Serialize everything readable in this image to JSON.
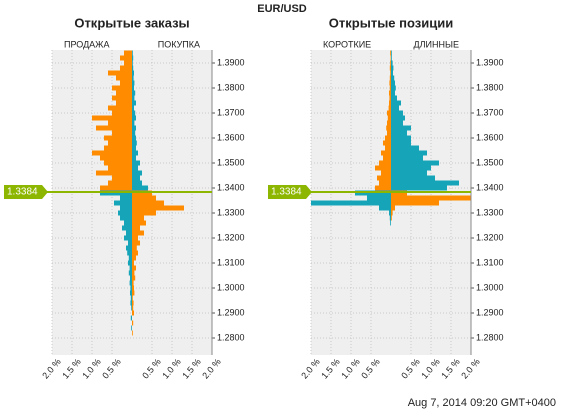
{
  "title": "EUR/USD",
  "footer": "Aug 7, 2014 09:20 GMT+0400",
  "chart_data": [
    {
      "type": "butterfly",
      "title": "Открытые заказы",
      "current_price": 1.3384,
      "y": [
        1.28,
        1.282,
        1.284,
        1.286,
        1.288,
        1.29,
        1.292,
        1.294,
        1.296,
        1.298,
        1.3,
        1.302,
        1.304,
        1.306,
        1.308,
        1.31,
        1.312,
        1.314,
        1.316,
        1.318,
        1.32,
        1.322,
        1.324,
        1.326,
        1.328,
        1.33,
        1.332,
        1.334,
        1.336,
        1.338,
        1.34,
        1.342,
        1.344,
        1.346,
        1.348,
        1.35,
        1.352,
        1.354,
        1.356,
        1.358,
        1.36,
        1.362,
        1.364,
        1.366,
        1.368,
        1.37,
        1.372,
        1.374,
        1.376,
        1.378,
        1.38,
        1.382,
        1.384,
        1.386,
        1.388,
        1.39,
        1.392,
        1.394
      ],
      "series": [
        {
          "name": "ПРОДАЖА",
          "side": "left",
          "color_above": "#ff8c00",
          "color_below": "#16a4b8",
          "values": [
            0,
            0,
            0.02,
            0,
            0.03,
            0,
            0.02,
            0.04,
            0.03,
            0.05,
            0.04,
            0.06,
            0.05,
            0.08,
            0.06,
            0.1,
            0.08,
            0.12,
            0.15,
            0.1,
            0.2,
            0.15,
            0.25,
            0.2,
            0.3,
            0.35,
            0.3,
            0.45,
            0.3,
            0.8,
            0.8,
            0.6,
            0.5,
            0.9,
            0.6,
            0.7,
            0.8,
            1.0,
            0.7,
            0.6,
            0.7,
            0.5,
            0.9,
            0.6,
            1.0,
            0.5,
            0.6,
            0.4,
            0.5,
            0.4,
            0.5,
            0.3,
            0.4,
            0.6,
            0.3,
            0.2,
            0.3,
            0.2
          ]
        },
        {
          "name": "ПОКУПКА",
          "side": "right",
          "color_above": "#16a4b8",
          "color_below": "#ff8c00",
          "values": [
            0,
            0.02,
            0,
            0.03,
            0,
            0.05,
            0.03,
            0.04,
            0.02,
            0.06,
            0.05,
            0.04,
            0.08,
            0.06,
            0.1,
            0.05,
            0.1,
            0.15,
            0.12,
            0.2,
            0.15,
            0.3,
            0.2,
            0.35,
            0.3,
            0.6,
            1.3,
            0.8,
            0.6,
            0.5,
            0.4,
            0.25,
            0.2,
            0.25,
            0.15,
            0.2,
            0.1,
            0.15,
            0.1,
            0.12,
            0.1,
            0.08,
            0.1,
            0.06,
            0.1,
            0.08,
            0.05,
            0.1,
            0.06,
            0.08,
            0.05,
            0.06,
            0.04,
            0.05,
            0.03,
            0.02,
            0.03,
            0.02
          ]
        }
      ],
      "xlim": [
        -2,
        2
      ],
      "xticks": [
        {
          "value": -2,
          "label": "2.0 %"
        },
        {
          "value": -1.5,
          "label": "1.5 %"
        },
        {
          "value": -1,
          "label": "1.0 %"
        },
        {
          "value": -0.5,
          "label": "0.5 %"
        },
        {
          "value": 0.5,
          "label": "0.5 %"
        },
        {
          "value": 1,
          "label": "1.0 %"
        },
        {
          "value": 1.5,
          "label": "1.5 %"
        },
        {
          "value": 2,
          "label": "2.0 %"
        }
      ],
      "ylim": [
        1.2732,
        1.3952
      ],
      "yticks": [
        {
          "value": 1.28,
          "label": "1.2800"
        },
        {
          "value": 1.29,
          "label": "1.2900"
        },
        {
          "value": 1.3,
          "label": "1.3000"
        },
        {
          "value": 1.31,
          "label": "1.3100"
        },
        {
          "value": 1.32,
          "label": "1.3200"
        },
        {
          "value": 1.33,
          "label": "1.3300"
        },
        {
          "value": 1.34,
          "label": "1.3400"
        },
        {
          "value": 1.35,
          "label": "1.3500"
        },
        {
          "value": 1.36,
          "label": "1.3600"
        },
        {
          "value": 1.37,
          "label": "1.3700"
        },
        {
          "value": 1.38,
          "label": "1.3800"
        },
        {
          "value": 1.39,
          "label": "1.3900"
        }
      ],
      "grid": true
    },
    {
      "type": "butterfly",
      "title": "Открытые позиции",
      "current_price": 1.3384,
      "y": [
        1.28,
        1.282,
        1.284,
        1.286,
        1.288,
        1.29,
        1.292,
        1.294,
        1.296,
        1.298,
        1.3,
        1.302,
        1.304,
        1.306,
        1.308,
        1.31,
        1.312,
        1.314,
        1.316,
        1.318,
        1.32,
        1.322,
        1.324,
        1.326,
        1.328,
        1.33,
        1.332,
        1.334,
        1.336,
        1.338,
        1.34,
        1.342,
        1.344,
        1.346,
        1.348,
        1.35,
        1.352,
        1.354,
        1.356,
        1.358,
        1.36,
        1.362,
        1.364,
        1.366,
        1.368,
        1.37,
        1.372,
        1.374,
        1.376,
        1.378,
        1.38,
        1.382,
        1.384,
        1.386,
        1.388,
        1.39,
        1.392,
        1.394
      ],
      "series": [
        {
          "name": "КОРОТКИЕ",
          "side": "left",
          "color_above": "#ff8c00",
          "color_below": "#16a4b8",
          "values": [
            0,
            0,
            0,
            0,
            0,
            0,
            0,
            0,
            0,
            0,
            0,
            0,
            0,
            0,
            0,
            0,
            0,
            0,
            0,
            0,
            0,
            0,
            0,
            0.02,
            0.03,
            0.05,
            0.3,
            2.0,
            0.6,
            0.9,
            0.4,
            0.3,
            0.35,
            0.25,
            0.4,
            0.3,
            0.2,
            0.25,
            0.15,
            0.2,
            0.15,
            0.1,
            0.12,
            0.1,
            0.08,
            0.1,
            0.06,
            0.05,
            0.04,
            0.05,
            0.03,
            0.04,
            0.03,
            0.02,
            0.03,
            0.02,
            0.01,
            0.02
          ]
        },
        {
          "name": "ДЛИННЫЕ",
          "side": "right",
          "color_above": "#16a4b8",
          "color_below": "#ff8c00",
          "values": [
            0,
            0,
            0,
            0,
            0,
            0,
            0,
            0,
            0,
            0,
            0,
            0,
            0,
            0,
            0,
            0,
            0,
            0,
            0,
            0,
            0,
            0,
            0,
            0,
            0.02,
            0.04,
            0.1,
            1.2,
            2.0,
            0.4,
            1.4,
            1.7,
            1.1,
            0.9,
            1.0,
            1.2,
            0.8,
            0.9,
            0.7,
            0.5,
            0.5,
            0.4,
            0.5,
            0.3,
            0.35,
            0.3,
            0.2,
            0.25,
            0.15,
            0.1,
            0.12,
            0.1,
            0.08,
            0.05,
            0.06,
            0.04,
            0.02,
            0.02
          ]
        }
      ],
      "xlim": [
        -2,
        2
      ],
      "xticks": [
        {
          "value": -2,
          "label": "2.0 %"
        },
        {
          "value": -1.5,
          "label": "1.5 %"
        },
        {
          "value": -1,
          "label": "1.0 %"
        },
        {
          "value": -0.5,
          "label": "0.5 %"
        },
        {
          "value": 0.5,
          "label": "0.5 %"
        },
        {
          "value": 1,
          "label": "1.0 %"
        },
        {
          "value": 1.5,
          "label": "1.5 %"
        },
        {
          "value": 2,
          "label": "2.0 %"
        }
      ],
      "ylim": [
        1.2732,
        1.3952
      ],
      "yticks": [
        {
          "value": 1.28,
          "label": "1.2800"
        },
        {
          "value": 1.29,
          "label": "1.2900"
        },
        {
          "value": 1.3,
          "label": "1.3000"
        },
        {
          "value": 1.31,
          "label": "1.3100"
        },
        {
          "value": 1.32,
          "label": "1.3200"
        },
        {
          "value": 1.33,
          "label": "1.3300"
        },
        {
          "value": 1.34,
          "label": "1.3400"
        },
        {
          "value": 1.35,
          "label": "1.3500"
        },
        {
          "value": 1.36,
          "label": "1.3600"
        },
        {
          "value": 1.37,
          "label": "1.3700"
        },
        {
          "value": 1.38,
          "label": "1.3800"
        },
        {
          "value": 1.39,
          "label": "1.3900"
        }
      ],
      "grid": true
    }
  ]
}
